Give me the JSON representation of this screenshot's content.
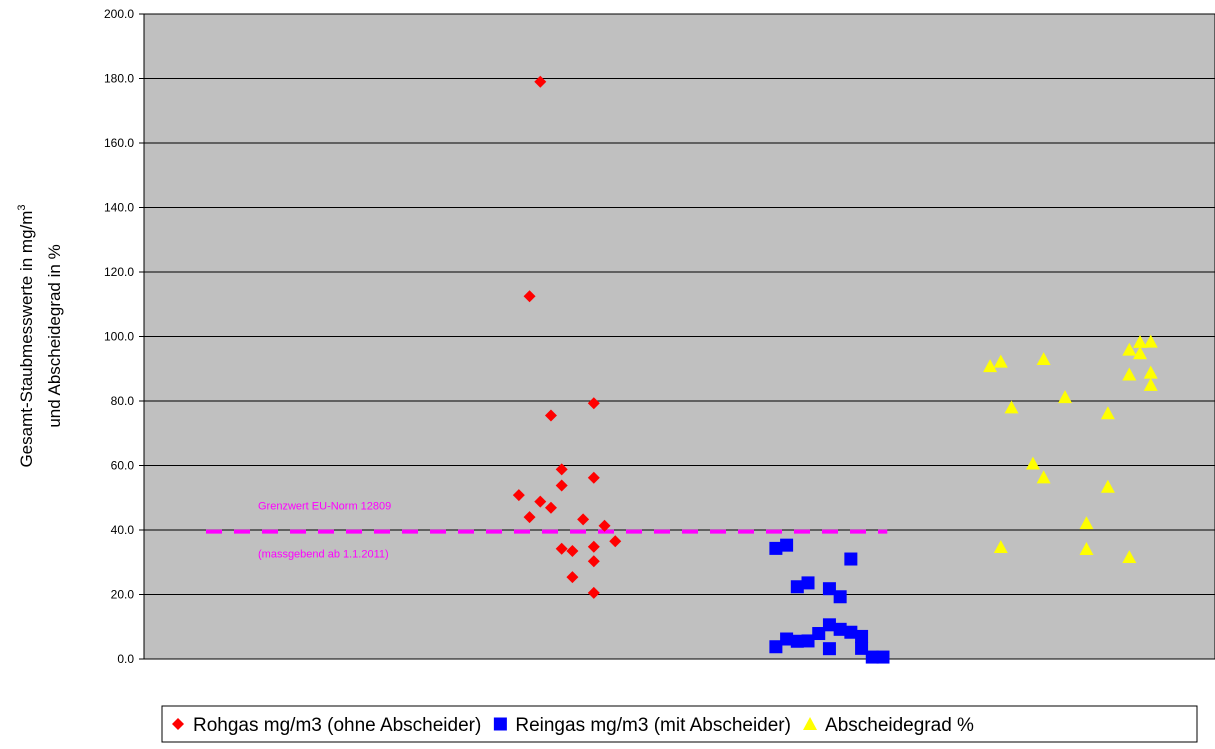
{
  "chart_data": {
    "type": "scatter",
    "ylabel_line1": "Gesamt-Staubmesswerte in mg/m",
    "ylabel_sup": "3",
    "ylabel_line2": "und Abscheidegrad in %",
    "ylim": [
      0,
      200
    ],
    "yticks": [
      "0.0",
      "20.0",
      "40.0",
      "60.0",
      "80.0",
      "100.0",
      "120.0",
      "140.0",
      "160.0",
      "180.0",
      "200.0"
    ],
    "grid": true,
    "legend_position": "bottom",
    "series": [
      {
        "name": "Rohgas mg/m3 (ohne Abscheider)",
        "marker": "diamond",
        "color": "#ff0000",
        "points": [
          [
            37,
            179
          ],
          [
            36,
            112.5
          ],
          [
            38,
            75.5
          ],
          [
            42,
            79.3
          ],
          [
            39,
            58.8
          ],
          [
            39,
            53.8
          ],
          [
            42,
            56.2
          ],
          [
            35,
            50.8
          ],
          [
            37,
            48.8
          ],
          [
            38,
            46.9
          ],
          [
            36,
            44.0
          ],
          [
            41,
            43.3
          ],
          [
            43,
            41.3
          ],
          [
            44,
            36.5
          ],
          [
            39,
            34.2
          ],
          [
            40,
            33.5
          ],
          [
            42,
            34.8
          ],
          [
            42,
            30.3
          ],
          [
            40,
            25.4
          ],
          [
            42,
            20.5
          ]
        ]
      },
      {
        "name": "Reingas mg/m3 (mit Abscheider)",
        "marker": "square",
        "color": "#0000ff",
        "points": [
          [
            59,
            34.3
          ],
          [
            60,
            35.3
          ],
          [
            61,
            22.4
          ],
          [
            62,
            23.6
          ],
          [
            64,
            21.8
          ],
          [
            65,
            19.3
          ],
          [
            66,
            31.0
          ],
          [
            59,
            3.8
          ],
          [
            60,
            6.2
          ],
          [
            61,
            5.5
          ],
          [
            62,
            5.6
          ],
          [
            63,
            7.9
          ],
          [
            64,
            10.6
          ],
          [
            65,
            9.2
          ],
          [
            66,
            8.3
          ],
          [
            67,
            7.0
          ],
          [
            64,
            3.2
          ],
          [
            67,
            3.3
          ],
          [
            68,
            0.6
          ],
          [
            69,
            0.6
          ]
        ]
      },
      {
        "name": "Abscheidegrad %",
        "marker": "triangle",
        "color": "#ffff00",
        "points": [
          [
            79,
            90.8
          ],
          [
            80,
            92.2
          ],
          [
            84,
            93.0
          ],
          [
            92,
            95.9
          ],
          [
            93,
            98.3
          ],
          [
            94,
            98.4
          ],
          [
            93,
            94.8
          ],
          [
            92,
            88.2
          ],
          [
            94,
            88.8
          ],
          [
            94,
            85.0
          ],
          [
            86,
            81.2
          ],
          [
            81,
            78.0
          ],
          [
            90,
            76.2
          ],
          [
            83,
            60.6
          ],
          [
            84,
            56.3
          ],
          [
            90,
            53.4
          ],
          [
            88,
            42.1
          ],
          [
            80,
            34.7
          ],
          [
            88,
            34.1
          ],
          [
            92,
            31.6
          ]
        ]
      }
    ],
    "reference_line": {
      "value": 39.5,
      "x_start": 0,
      "x_end": 68,
      "color": "#ff00ff",
      "label_above": "Grenzwert EU-Norm 12809",
      "label_below": "(massgebend ab 1.1.2011)"
    }
  }
}
